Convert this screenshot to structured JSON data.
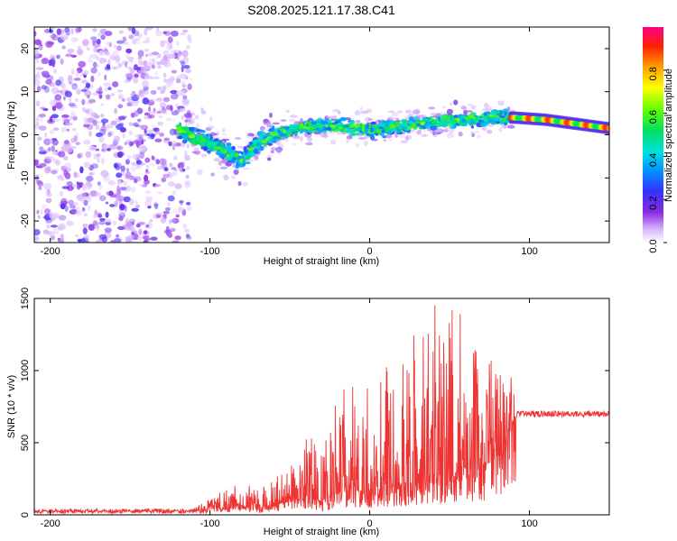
{
  "chart_data": [
    {
      "type": "heatmap",
      "title": "S208.2025.121.17.38.C41",
      "xlabel": "Height of straight line (km)",
      "ylabel": "Frequency (Hz)",
      "xlim": [
        -210,
        150
      ],
      "ylim": [
        -25,
        25
      ],
      "xticks": [
        -200,
        -100,
        0,
        100
      ],
      "yticks": [
        -20,
        -10,
        0,
        10,
        20
      ],
      "colorbar": {
        "label": "Normalized spectral amplitude",
        "range": [
          0.0,
          1.0
        ],
        "ticks": [
          "0.0",
          "0.2",
          "0.4",
          "0.6",
          "0.8"
        ],
        "colormap": "rainbow (white/purple low → blue → cyan → green → yellow → red → magenta high)"
      },
      "ridge": [
        {
          "x": -120,
          "y": 1
        },
        {
          "x": -100,
          "y": -2
        },
        {
          "x": -90,
          "y": -4
        },
        {
          "x": -80,
          "y": -6
        },
        {
          "x": -70,
          "y": -2
        },
        {
          "x": -60,
          "y": 0
        },
        {
          "x": -40,
          "y": 2
        },
        {
          "x": -20,
          "y": 2
        },
        {
          "x": 0,
          "y": 1
        },
        {
          "x": 20,
          "y": 2
        },
        {
          "x": 40,
          "y": 3
        },
        {
          "x": 60,
          "y": 3.5
        },
        {
          "x": 80,
          "y": 4
        },
        {
          "x": 90,
          "y": 4
        },
        {
          "x": 110,
          "y": 3.5
        },
        {
          "x": 130,
          "y": 2.5
        },
        {
          "x": 150,
          "y": 1.5
        }
      ]
    },
    {
      "type": "line",
      "xlabel": "Height of straight line (km)",
      "ylabel": "SNR (10 * v/v)",
      "xlim": [
        -210,
        150
      ],
      "ylim": [
        0,
        1500
      ],
      "xticks": [
        -200,
        -100,
        0,
        100
      ],
      "yticks": [
        0,
        500,
        1000,
        1500
      ],
      "color": "#ee3333",
      "envelope": [
        {
          "x": -210,
          "base": 25,
          "peak": 40
        },
        {
          "x": -110,
          "base": 25,
          "peak": 45
        },
        {
          "x": -100,
          "base": 40,
          "peak": 120
        },
        {
          "x": -90,
          "base": 40,
          "peak": 180
        },
        {
          "x": -80,
          "base": 60,
          "peak": 230
        },
        {
          "x": -70,
          "base": 40,
          "peak": 170
        },
        {
          "x": -60,
          "base": 60,
          "peak": 250
        },
        {
          "x": -50,
          "base": 80,
          "peak": 330
        },
        {
          "x": -40,
          "base": 120,
          "peak": 630
        },
        {
          "x": -30,
          "base": 80,
          "peak": 420
        },
        {
          "x": -20,
          "base": 150,
          "peak": 820
        },
        {
          "x": -10,
          "base": 180,
          "peak": 1020
        },
        {
          "x": 0,
          "base": 150,
          "peak": 900
        },
        {
          "x": 10,
          "base": 180,
          "peak": 1050
        },
        {
          "x": 20,
          "base": 200,
          "peak": 1200
        },
        {
          "x": 30,
          "base": 200,
          "peak": 1300
        },
        {
          "x": 40,
          "base": 250,
          "peak": 1490
        },
        {
          "x": 50,
          "base": 250,
          "peak": 1480
        },
        {
          "x": 60,
          "base": 300,
          "peak": 1400
        },
        {
          "x": 70,
          "base": 300,
          "peak": 1150
        },
        {
          "x": 80,
          "base": 400,
          "peak": 1100
        },
        {
          "x": 88,
          "base": 500,
          "peak": 1000
        },
        {
          "x": 92,
          "base": 680,
          "peak": 740
        },
        {
          "x": 150,
          "base": 680,
          "peak": 740
        }
      ]
    }
  ]
}
